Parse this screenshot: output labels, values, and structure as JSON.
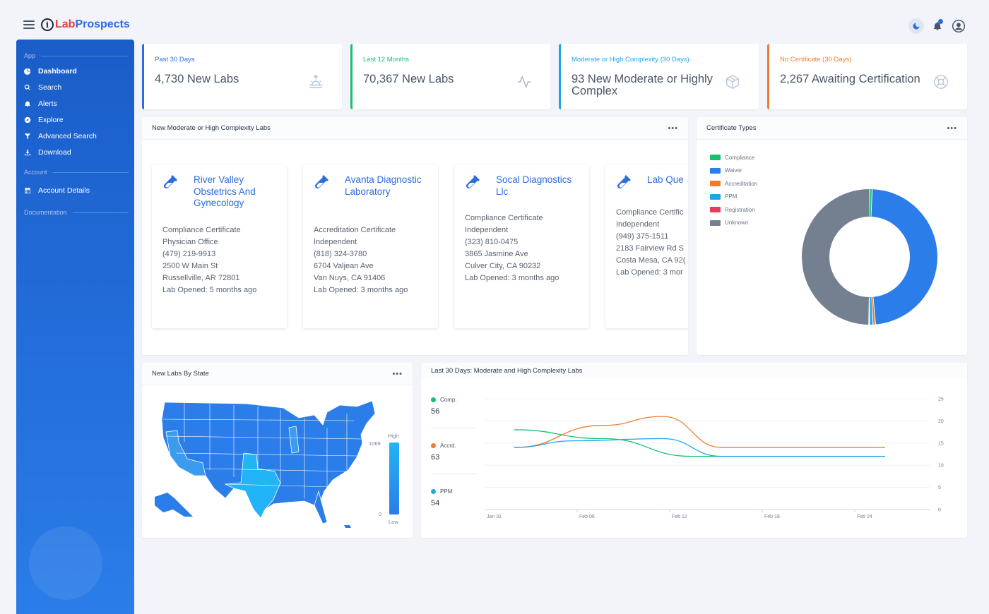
{
  "app": {
    "logo_mark": "i",
    "name_part1": "Lab",
    "name_part2": "Prospects"
  },
  "header": {
    "icons": [
      "menu-icon",
      "moon-icon",
      "bell-icon",
      "user-icon"
    ]
  },
  "sidebar": {
    "sections": [
      {
        "label": "App"
      },
      {
        "label": "Account"
      },
      {
        "label": "Documentation"
      }
    ],
    "items": [
      {
        "label": "Dashboard",
        "icon": "pie-chart-icon"
      },
      {
        "label": "Search",
        "icon": "search-icon"
      },
      {
        "label": "Alerts",
        "icon": "bell-icon"
      },
      {
        "label": "Explore",
        "icon": "compass-icon"
      },
      {
        "label": "Advanced Search",
        "icon": "filter-icon"
      },
      {
        "label": "Download",
        "icon": "download-icon"
      },
      {
        "label": "Account Details",
        "icon": "calendar-icon"
      }
    ]
  },
  "stats": [
    {
      "caption": "Past 30 Days",
      "value": "4,730 New Labs",
      "color": "#2b6cdf",
      "icon": "sunrise-icon"
    },
    {
      "caption": "Last 12 Months",
      "value": "70,367 New Labs",
      "color": "#16c172",
      "icon": "activity-icon"
    },
    {
      "caption": "Moderate or High Complexity (30 Days)",
      "value": "93 New Moderate or Highly Complex",
      "color": "#1ea7e8",
      "icon": "box-icon"
    },
    {
      "caption": "No Certificate (30 Days)",
      "value": "2,267 Awaiting Certification",
      "color": "#ed7d31",
      "icon": "lifebuoy-icon"
    }
  ],
  "labs_panel": {
    "title": "New Moderate or High Complexity Labs",
    "labs": [
      {
        "name": "River Valley Obstetrics And Gynecology",
        "lines": [
          "Compliance Certificate",
          "Physician Office",
          "(479) 219-9913",
          "2500 W Main St",
          "Russellville, AR 72801",
          "Lab Opened: 5 months ago"
        ]
      },
      {
        "name": "Avanta Diagnostic Laboratory",
        "lines": [
          "Accreditation Certificate",
          "Independent",
          "(818) 324-3780",
          "6704 Valjean Ave",
          "Van Nuys, CA 91406",
          "Lab Opened: 3 months ago"
        ]
      },
      {
        "name": "Socal Diagnostics Llc",
        "lines": [
          "Compliance Certificate",
          "Independent",
          "(323) 810-0475",
          "3865 Jasmine Ave",
          "Culver City, CA 90232",
          "Lab Opened: 3 months ago"
        ]
      },
      {
        "name": "Lab Que",
        "lines": [
          "Compliance Certific",
          "Independent",
          "(949) 375-1511",
          "2183 Fairview Rd S",
          "Costa Mesa, CA 92(",
          "Lab Opened: 3 mor"
        ]
      }
    ]
  },
  "cert_panel": {
    "title": "Certificate Types",
    "legend": [
      {
        "label": "Compliance",
        "color": "#16c172"
      },
      {
        "label": "Waiver",
        "color": "#2b7de9"
      },
      {
        "label": "Accreditation",
        "color": "#ed7d31"
      },
      {
        "label": "PPM",
        "color": "#1ea7e8"
      },
      {
        "label": "Registration",
        "color": "#e53e5a"
      },
      {
        "label": "Unknown",
        "color": "#74808f"
      }
    ]
  },
  "map_panel": {
    "title": "New Labs By State",
    "scale_high": "High",
    "scale_low": "Low",
    "scale_max": "1069",
    "scale_min": "0"
  },
  "line_panel": {
    "title": "Last 30 Days: Moderate and High Complexity Labs",
    "stats": [
      {
        "label": "Comp.",
        "value": "56",
        "color": "#16c172"
      },
      {
        "label": "Accrd.",
        "value": "63",
        "color": "#ed7d31"
      },
      {
        "label": "PPM",
        "value": "54",
        "color": "#1ea7e8"
      }
    ]
  },
  "chart_data": [
    {
      "type": "pie",
      "title": "Certificate Types",
      "categories": [
        "Compliance",
        "Waiver",
        "Accreditation",
        "PPM",
        "Registration",
        "Unknown"
      ],
      "values": [
        0.6,
        48,
        0.6,
        0.8,
        0.2,
        49.8
      ]
    },
    {
      "type": "line",
      "title": "Last 30 Days: Moderate and High Complexity Labs",
      "x": [
        "Jan 31",
        "Feb 06",
        "Feb 12",
        "Feb 18",
        "Feb 24"
      ],
      "ylim": [
        0,
        25
      ],
      "yticks": [
        0,
        5,
        10,
        15,
        20,
        25
      ],
      "series": [
        {
          "name": "Comp.",
          "color": "#16c172",
          "points": [
            [
              2,
              18
            ],
            [
              8,
              16
            ],
            [
              14,
              12
            ],
            [
              20,
              12
            ],
            [
              27,
              12
            ]
          ]
        },
        {
          "name": "Accrd.",
          "color": "#ed7d31",
          "points": [
            [
              2,
              14
            ],
            [
              8,
              19
            ],
            [
              12,
              21
            ],
            [
              16,
              14
            ],
            [
              20,
              14
            ],
            [
              27,
              14
            ]
          ]
        },
        {
          "name": "PPM",
          "color": "#1ea7e8",
          "points": [
            [
              2,
              14
            ],
            [
              6,
              15.5
            ],
            [
              12,
              16
            ],
            [
              16,
              12
            ],
            [
              20,
              12
            ],
            [
              27,
              12
            ]
          ]
        }
      ]
    }
  ]
}
